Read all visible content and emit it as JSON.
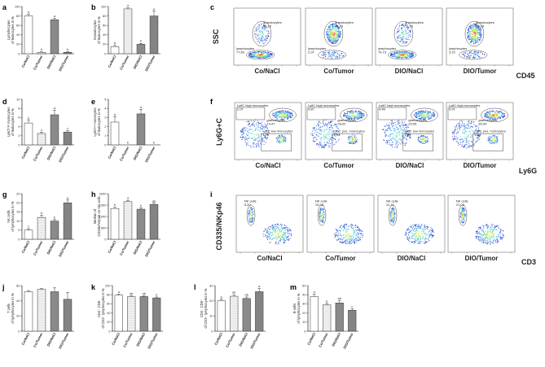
{
  "categories": [
    "Co/NaCl",
    "Co/Tumor",
    "DIO/NaCl",
    "DIO/Tumor"
  ],
  "bar_colors": [
    "#ffffff",
    "#eeeeee",
    "#8a8a8a",
    "#8a8a8a"
  ],
  "chart_data": [
    {
      "id": "a",
      "type": "bar",
      "ylabel": [
        "Lymphocytes",
        "of leukocytes in %"
      ],
      "ylim": [
        0,
        100
      ],
      "yticks": [
        0,
        20,
        40,
        60,
        80,
        100
      ],
      "values": [
        80,
        3,
        72,
        3
      ],
      "errors": [
        4,
        1,
        3,
        1
      ],
      "sig": [
        "a",
        "b",
        "a",
        "b"
      ]
    },
    {
      "id": "b",
      "type": "bar",
      "ylabel": [
        "Granulocytes",
        "of leukocytes in %"
      ],
      "ylim": [
        0,
        100
      ],
      "yticks": [
        0,
        20,
        40,
        60,
        80,
        100
      ],
      "values": [
        15,
        95,
        20,
        80
      ],
      "errors": [
        3,
        2,
        2,
        10
      ],
      "sig": [
        "b",
        "a",
        "b",
        "a"
      ]
    },
    {
      "id": "d",
      "type": "bar",
      "ylabel": [
        "Ly6Cʰⁱᵍʰ monocytes",
        "of leukocytes in %"
      ],
      "ylim": [
        0,
        10
      ],
      "yticks": [
        0,
        2,
        4,
        6,
        8,
        10
      ],
      "values": [
        4.8,
        2.5,
        6.6,
        2.8
      ],
      "errors": [
        0.6,
        0.3,
        1.0,
        0.3
      ],
      "sig": [
        "b",
        "c",
        "a",
        "c"
      ]
    },
    {
      "id": "e",
      "type": "bar",
      "ylabel": [
        "Ly6Cˡᵒʷ monocytes",
        "of leukocytes in %"
      ],
      "ylim": [
        0,
        5
      ],
      "yticks": [
        0,
        1,
        2,
        3,
        4,
        5
      ],
      "values": [
        2.5,
        0,
        3.4,
        0
      ],
      "errors": [
        0.6,
        0,
        0.5,
        0
      ],
      "sig": [
        "a",
        "b",
        "a",
        "b"
      ]
    },
    {
      "id": "g",
      "type": "bar",
      "ylabel": [
        "NK cells",
        "of lymphocytes in %"
      ],
      "ylim": [
        0,
        25
      ],
      "yticks": [
        0,
        5,
        10,
        15,
        20,
        25
      ],
      "values": [
        5,
        12,
        10,
        20
      ],
      "errors": [
        0.8,
        1.2,
        0.8,
        1.5
      ],
      "sig": [
        "c",
        "b",
        "b",
        "a"
      ]
    },
    {
      "id": "h",
      "type": "bar",
      "ylabel": [
        "Median of",
        "CD335/NKp46 on NK cells"
      ],
      "ylim": [
        0,
        2000
      ],
      "yticks": [
        0,
        500,
        1000,
        1500,
        2000
      ],
      "values": [
        1350,
        1650,
        1320,
        1530
      ],
      "errors": [
        60,
        60,
        60,
        50
      ],
      "sig": [
        "b",
        "a",
        "b",
        "ab"
      ]
    },
    {
      "id": "j",
      "type": "bar",
      "ylabel": [
        "T cells",
        "of lymphocytes in %"
      ],
      "ylim": [
        0,
        60
      ],
      "yticks": [
        0,
        20,
        40,
        60
      ],
      "values": [
        52,
        55,
        52,
        42
      ],
      "errors": [
        1.5,
        1,
        5,
        9
      ],
      "sig": [
        "",
        "",
        "",
        ""
      ]
    },
    {
      "id": "k",
      "type": "bar",
      "ylabel": [
        "CD4⁺ CD8⁻",
        "of CD3⁺ lymphocytes in %"
      ],
      "ylim": [
        0,
        100
      ],
      "yticks": [
        0,
        20,
        40,
        60,
        80,
        100
      ],
      "values": [
        79,
        76,
        76,
        73
      ],
      "errors": [
        2,
        2,
        2,
        2
      ],
      "sig": [
        "a",
        "ab",
        "ab",
        "b"
      ]
    },
    {
      "id": "l",
      "type": "bar",
      "ylabel": [
        "CD4⁻ CD8⁺",
        "of CD3⁺ lymphocytes in %"
      ],
      "ylim": [
        0,
        30
      ],
      "yticks": [
        0,
        10,
        20,
        30
      ],
      "values": [
        20,
        23,
        21.5,
        26
      ],
      "errors": [
        1,
        1,
        1,
        2
      ],
      "sig": [
        "b",
        "ab",
        "ab",
        "a"
      ]
    },
    {
      "id": "m",
      "type": "bar",
      "ylabel": [
        "B cells",
        "of lymphocytes in %"
      ],
      "ylim": [
        0,
        50
      ],
      "yticks": [
        0,
        10,
        20,
        30,
        40,
        50
      ],
      "values": [
        38,
        29,
        31,
        23
      ],
      "errors": [
        2.5,
        1.5,
        2.5,
        1.5
      ],
      "sig": [
        "a",
        "b",
        "ab",
        "c"
      ]
    }
  ],
  "flow": {
    "c": {
      "ylabel": "SSC",
      "xlabel": "CD45",
      "plots": [
        {
          "title": "Co/NaCl",
          "gates": [
            [
              "granulocytes",
              "16,10"
            ],
            [
              "lymphocytes",
              "77,60"
            ]
          ]
        },
        {
          "title": "Co/Tumor",
          "gates": [
            [
              "granulocytes",
              "93,23"
            ],
            [
              "lymphocytes",
              "2,97"
            ]
          ]
        },
        {
          "title": "DIO/NaCl",
          "gates": [
            [
              "granulocytes",
              "11,16"
            ],
            [
              "lymphocytes",
              "74,73"
            ]
          ]
        },
        {
          "title": "DIO/Tumor",
          "gates": [
            [
              "granulocytes",
              "89,35"
            ],
            [
              "lymphocytes",
              "3,15"
            ]
          ]
        }
      ]
    },
    "f": {
      "ylabel": "Ly6G+C",
      "xlabel": "Ly6G",
      "plots": [
        {
          "title": "Co/NaCl",
          "gates": [
            [
              "Ly6C high monocytes",
              "2,07"
            ],
            [
              "granulocytes",
              "14,47"
            ],
            [
              "Ly6C low monocytes",
              "1,76"
            ]
          ]
        },
        {
          "title": "Co/Tumor",
          "gates": [
            [
              "Ly6C high monocytes",
              "4,87"
            ],
            [
              "granulocytes",
              "28,02"
            ],
            [
              "Ly6C pos. monocytes",
              "1,94"
            ]
          ]
        },
        {
          "title": "DIO/NaCl",
          "gates": [
            [
              "Ly6C high monocytes",
              "4,48"
            ],
            [
              "granulocytes",
              "24,55"
            ],
            [
              "Ly6C low monocytes",
              "1,91"
            ]
          ]
        },
        {
          "title": "DIO/Tumor",
          "gates": [
            [
              "Ly6C high monocytes",
              "0,97"
            ],
            [
              "granulocytes",
              "83,34"
            ],
            [
              "Ly6C pos. monocytes",
              "2,84"
            ]
          ]
        }
      ]
    },
    "i": {
      "ylabel": "CD335/NKp46",
      "xlabel": "CD3",
      "plots": [
        {
          "title": "Co/NaCl",
          "gates": [
            [
              "NK cells",
              "5,20"
            ]
          ]
        },
        {
          "title": "Co/Tumor",
          "gates": [
            [
              "NK cells",
              "13,08"
            ]
          ]
        },
        {
          "title": "DIO/NaCl",
          "gates": [
            [
              "NK cells",
              "12,11"
            ]
          ]
        },
        {
          "title": "DIO/Tumor",
          "gates": [
            [
              "NK cells",
              "21,03"
            ]
          ]
        }
      ]
    }
  }
}
